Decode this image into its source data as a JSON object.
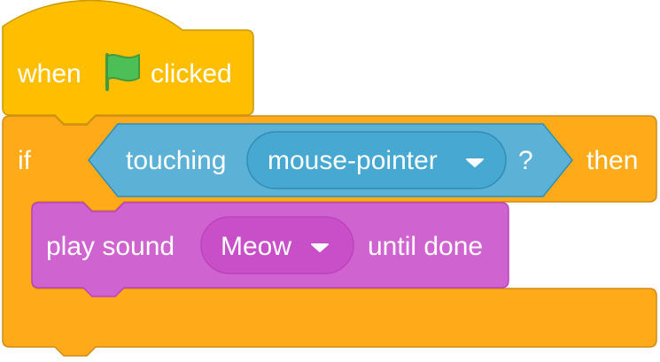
{
  "hat_block": {
    "when": "when",
    "flag_icon": "green-flag-icon",
    "clicked": "clicked"
  },
  "if_block": {
    "if_label": "if",
    "then_label": "then"
  },
  "touching_block": {
    "label": "touching",
    "menu_value": "mouse-pointer",
    "question": "?"
  },
  "sound_block": {
    "play_label": "play sound",
    "menu_value": "Meow",
    "until_label": "until done"
  },
  "colors": {
    "events": "#FFBF00",
    "events_stroke": "#CC9900",
    "control": "#FFAB19",
    "control_stroke": "#CF8B17",
    "sensing": "#5CB1D6",
    "sensing_menu": "#47A8D1",
    "sensing_stroke": "#2E8EB8",
    "sound": "#CF63CF",
    "sound_menu": "#C94FC9",
    "sound_stroke": "#BD42BD",
    "flag": "#4CBF56",
    "flag_stroke": "#45993D"
  }
}
